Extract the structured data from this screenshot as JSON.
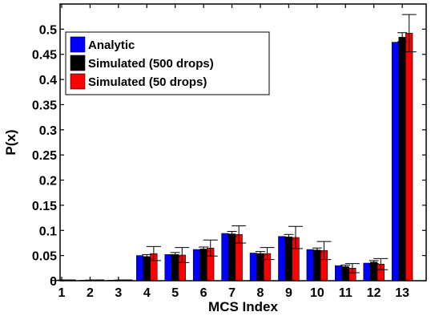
{
  "chart_data": {
    "type": "bar",
    "title": "",
    "xlabel": "MCS Index",
    "ylabel": "P(x)",
    "categories": [
      "1",
      "2",
      "3",
      "4",
      "5",
      "6",
      "7",
      "8",
      "9",
      "10",
      "11",
      "12",
      "13"
    ],
    "ylim": [
      0,
      0.55
    ],
    "yticks": [
      "0",
      "0.05",
      "0.1",
      "0.15",
      "0.2",
      "0.25",
      "0.3",
      "0.35",
      "0.4",
      "0.45",
      "0.5"
    ],
    "grid": false,
    "legend_position": "top-left",
    "series": [
      {
        "name": "Analytic",
        "color": "#0000ff",
        "values": [
          0.001,
          0.001,
          0.001,
          0.05,
          0.052,
          0.062,
          0.094,
          0.055,
          0.088,
          0.062,
          0.03,
          0.035,
          0.474
        ]
      },
      {
        "name": "Simulated (500 drops)",
        "color": "#000000",
        "values": [
          0.001,
          0.001,
          0.001,
          0.048,
          0.052,
          0.063,
          0.093,
          0.054,
          0.087,
          0.061,
          0.028,
          0.037,
          0.484
        ],
        "error": [
          0.0003,
          0.0003,
          0.0003,
          0.004,
          0.004,
          0.004,
          0.005,
          0.004,
          0.005,
          0.004,
          0.003,
          0.003,
          0.009
        ]
      },
      {
        "name": "Simulated (50 drops)",
        "color": "#ff0000",
        "values": [
          0.001,
          0.001,
          0.001,
          0.054,
          0.051,
          0.065,
          0.092,
          0.054,
          0.086,
          0.06,
          0.025,
          0.033,
          0.492
        ],
        "error": [
          0.0005,
          0.0005,
          0.0005,
          0.014,
          0.015,
          0.016,
          0.017,
          0.012,
          0.022,
          0.018,
          0.009,
          0.011,
          0.037
        ]
      }
    ]
  }
}
